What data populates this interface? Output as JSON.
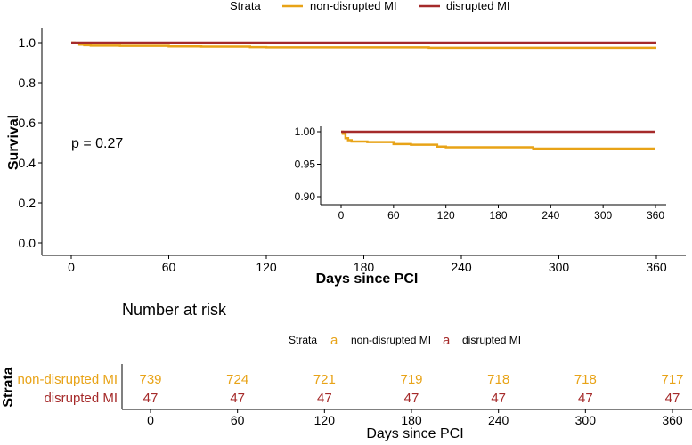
{
  "colors": {
    "non_disrupted": "#E8A317",
    "disrupted": "#A52A2A",
    "axis": "#000000"
  },
  "chart_data": [
    {
      "type": "line",
      "subtype": "kaplan-meier",
      "title": "",
      "xlabel": "Days since PCI",
      "ylabel": "Survival",
      "xlim": [
        0,
        365
      ],
      "ylim": [
        0,
        1
      ],
      "x_ticks": [
        0,
        60,
        120,
        180,
        240,
        300,
        360
      ],
      "y_ticks": [
        "0.0",
        "0.2",
        "0.4",
        "0.6",
        "0.8",
        "1.0"
      ],
      "legend": {
        "title": "Strata",
        "position": "top"
      },
      "annotation": "p = 0.27",
      "series": [
        {
          "name": "non-disrupted MI",
          "x": [
            0,
            2,
            5,
            8,
            12,
            30,
            60,
            80,
            110,
            120,
            220,
            360
          ],
          "y": [
            1.0,
            0.997,
            0.99,
            0.987,
            0.985,
            0.984,
            0.981,
            0.98,
            0.977,
            0.976,
            0.974,
            0.974
          ]
        },
        {
          "name": "disrupted MI",
          "x": [
            0,
            360
          ],
          "y": [
            1.0,
            1.0
          ]
        }
      ]
    },
    {
      "type": "line",
      "subtype": "kaplan-meier-inset",
      "xlim": [
        0,
        365
      ],
      "ylim": [
        0.9,
        1.0
      ],
      "x_ticks": [
        0,
        60,
        120,
        180,
        240,
        300,
        360
      ],
      "y_ticks": [
        "0.90",
        "0.95",
        "1.00"
      ]
    },
    {
      "type": "table",
      "title": "Number at risk",
      "xlabel": "Days since PCI",
      "ylabel": "Strata",
      "legend": {
        "title": "Strata",
        "position": "top"
      },
      "x_ticks": [
        0,
        60,
        120,
        180,
        240,
        300,
        360
      ],
      "rows": [
        {
          "name": "non-disrupted MI",
          "values": [
            739,
            724,
            721,
            719,
            718,
            718,
            717
          ]
        },
        {
          "name": "disrupted MI",
          "values": [
            47,
            47,
            47,
            47,
            47,
            47,
            47
          ]
        }
      ]
    }
  ],
  "legend_key_letter": "a"
}
